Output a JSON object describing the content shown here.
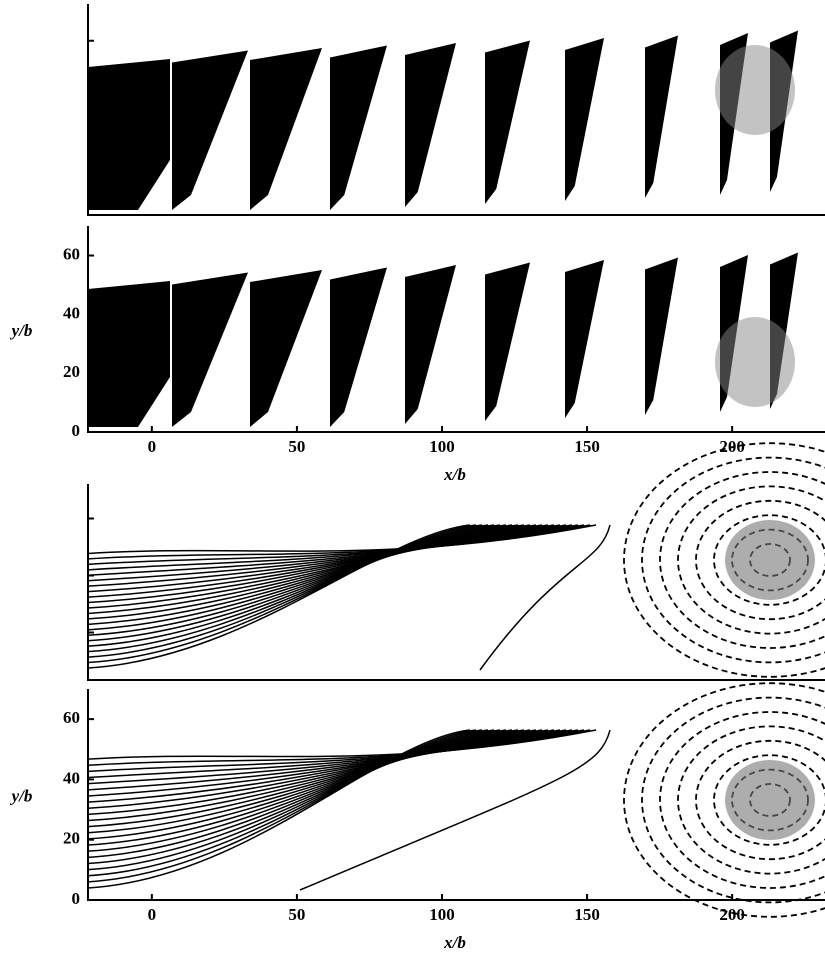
{
  "chart_data": [
    {
      "type": "profile"
    },
    {
      "type": "profile",
      "xlabel": "x/b",
      "ylabel": "y/b",
      "xlim": [
        -22,
        232
      ],
      "ylim": [
        0,
        68
      ],
      "xticks": [
        0,
        50,
        100,
        150,
        200
      ],
      "yticks": [
        0,
        20,
        40,
        60
      ]
    },
    {
      "type": "contour"
    },
    {
      "type": "contour",
      "xlabel": "x/b",
      "ylabel": "y/b",
      "xlim": [
        -22,
        232
      ],
      "ylim": [
        0,
        68
      ],
      "xticks": [
        0,
        50,
        100,
        150,
        200
      ],
      "yticks": [
        0,
        20,
        40,
        60
      ]
    }
  ]
}
